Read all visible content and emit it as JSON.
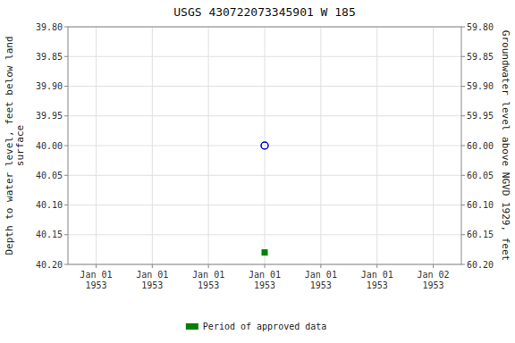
{
  "chart_data": {
    "type": "scatter",
    "title": "USGS 430722073345901 W 185",
    "y_label": "Depth to water level, feet below land\nsurface",
    "y2_label": "Groundwater level above NGVD 1929, feet",
    "categories": [
      "Jan 01\n1953",
      "Jan 01\n1953",
      "Jan 01\n1953",
      "Jan 01\n1953",
      "Jan 01\n1953",
      "Jan 01\n1953",
      "Jan 02\n1953"
    ],
    "series": [
      {
        "color": "#0000cc",
        "marker": "circle",
        "values": [
          null,
          null,
          null,
          40.0,
          null,
          null,
          null
        ]
      },
      {
        "name": "Period of approved data",
        "color": "#008000",
        "marker": "square",
        "values": [
          null,
          null,
          null,
          40.18,
          null,
          null,
          null
        ]
      }
    ],
    "ylim": [
      40.2,
      39.8
    ],
    "yticks": [
      {
        "value": 39.8,
        "label": "39.80"
      },
      {
        "value": 39.85,
        "label": "39.85"
      },
      {
        "value": 39.9,
        "label": "39.90"
      },
      {
        "value": 39.95,
        "label": "39.95"
      },
      {
        "value": 40.0,
        "label": "40.00"
      },
      {
        "value": 40.05,
        "label": "40.05"
      },
      {
        "value": 40.1,
        "label": "40.10"
      },
      {
        "value": 40.15,
        "label": "40.15"
      },
      {
        "value": 40.2,
        "label": "40.20"
      }
    ],
    "y2lim": [
      60.2,
      59.8
    ],
    "y2ticks": [
      {
        "value": 60.2,
        "label": "60.20"
      },
      {
        "value": 60.15,
        "label": "60.15"
      },
      {
        "value": 60.1,
        "label": "60.10"
      },
      {
        "value": 60.05,
        "label": "60.05"
      },
      {
        "value": 60.0,
        "label": "60.00"
      },
      {
        "value": 59.95,
        "label": "59.95"
      },
      {
        "value": 59.9,
        "label": "59.90"
      },
      {
        "value": 59.85,
        "label": "59.85"
      },
      {
        "value": 59.8,
        "label": "59.80"
      }
    ],
    "grid": true,
    "legend": "bottom"
  }
}
